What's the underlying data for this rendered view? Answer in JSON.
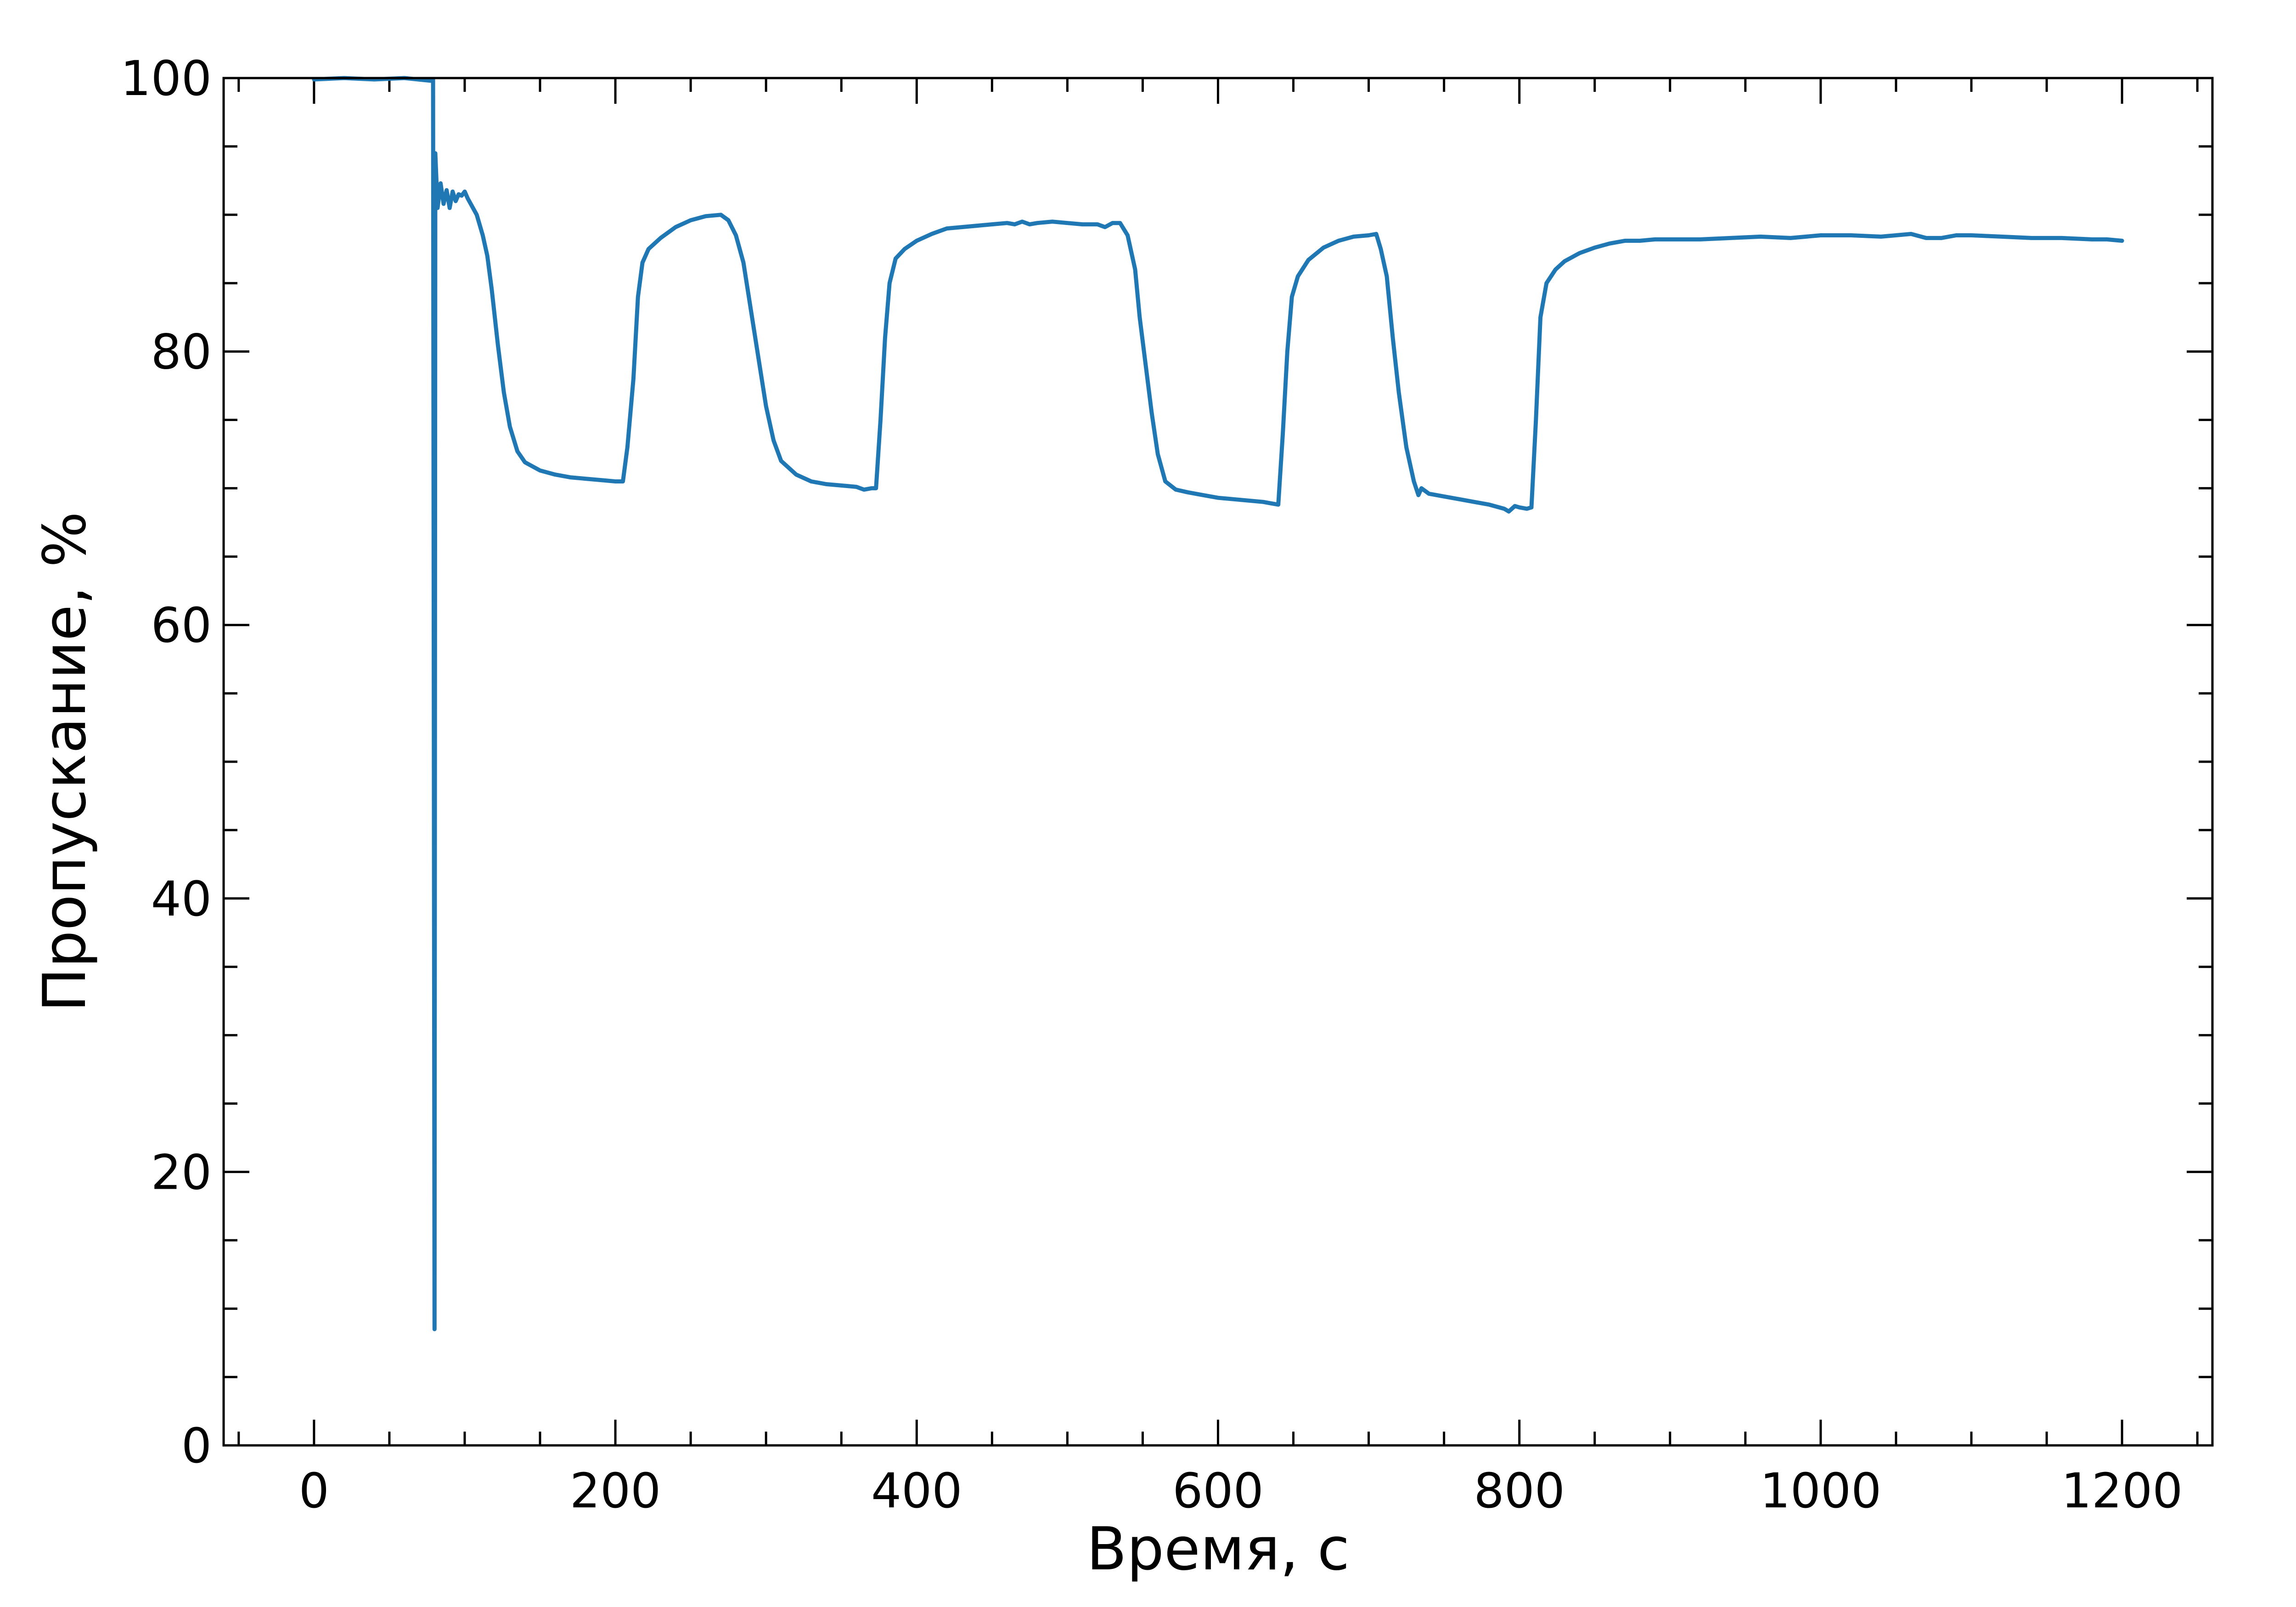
{
  "chart_data": {
    "type": "line",
    "title": "",
    "xlabel": "Время, с",
    "ylabel": "Пропускание, %",
    "xlim": [
      -60,
      1260
    ],
    "ylim": [
      0,
      100
    ],
    "xticks": [
      0,
      200,
      400,
      600,
      800,
      1000,
      1200
    ],
    "yticks": [
      0,
      20,
      40,
      60,
      80,
      100
    ],
    "x_minor_step": 50,
    "y_minor_step": 5,
    "ticks_direction": "in",
    "ticks_on_all_sides": true,
    "grid": false,
    "legend": "none",
    "series": [
      {
        "color": "#1f77b4",
        "points": [
          [
            0,
            99.9
          ],
          [
            20,
            100
          ],
          [
            40,
            99.9
          ],
          [
            60,
            100
          ],
          [
            78,
            99.8
          ],
          [
            79,
            99.9
          ],
          [
            80,
            8.5
          ],
          [
            80.5,
            94.5
          ],
          [
            82,
            90.5
          ],
          [
            84,
            92.3
          ],
          [
            86,
            90.8
          ],
          [
            88,
            91.8
          ],
          [
            90,
            90.5
          ],
          [
            92,
            91.7
          ],
          [
            94,
            91.0
          ],
          [
            96,
            91.5
          ],
          [
            98,
            91.4
          ],
          [
            100,
            91.7
          ],
          [
            102,
            91.2
          ],
          [
            104,
            90.8
          ],
          [
            108,
            90.0
          ],
          [
            112,
            88.5
          ],
          [
            115,
            87.0
          ],
          [
            118,
            84.5
          ],
          [
            122,
            80.5
          ],
          [
            126,
            77.0
          ],
          [
            130,
            74.5
          ],
          [
            135,
            72.7
          ],
          [
            140,
            71.9
          ],
          [
            150,
            71.3
          ],
          [
            160,
            71.0
          ],
          [
            170,
            70.8
          ],
          [
            180,
            70.7
          ],
          [
            190,
            70.6
          ],
          [
            200,
            70.5
          ],
          [
            205,
            70.5
          ],
          [
            208,
            73.0
          ],
          [
            212,
            78.0
          ],
          [
            215,
            84.0
          ],
          [
            218,
            86.5
          ],
          [
            222,
            87.5
          ],
          [
            230,
            88.3
          ],
          [
            240,
            89.1
          ],
          [
            250,
            89.6
          ],
          [
            260,
            89.9
          ],
          [
            270,
            90.0
          ],
          [
            275,
            89.6
          ],
          [
            280,
            88.5
          ],
          [
            285,
            86.5
          ],
          [
            290,
            83.0
          ],
          [
            295,
            79.5
          ],
          [
            300,
            76.0
          ],
          [
            305,
            73.5
          ],
          [
            310,
            72.0
          ],
          [
            320,
            71.0
          ],
          [
            330,
            70.5
          ],
          [
            340,
            70.3
          ],
          [
            350,
            70.2
          ],
          [
            360,
            70.1
          ],
          [
            365,
            69.9
          ],
          [
            370,
            70.0
          ],
          [
            373,
            70.0
          ],
          [
            376,
            75.0
          ],
          [
            379,
            81.0
          ],
          [
            382,
            85.0
          ],
          [
            386,
            86.8
          ],
          [
            392,
            87.5
          ],
          [
            400,
            88.1
          ],
          [
            410,
            88.6
          ],
          [
            420,
            89.0
          ],
          [
            430,
            89.1
          ],
          [
            440,
            89.2
          ],
          [
            450,
            89.3
          ],
          [
            460,
            89.4
          ],
          [
            465,
            89.3
          ],
          [
            470,
            89.5
          ],
          [
            475,
            89.3
          ],
          [
            480,
            89.4
          ],
          [
            490,
            89.5
          ],
          [
            500,
            89.4
          ],
          [
            510,
            89.3
          ],
          [
            520,
            89.3
          ],
          [
            525,
            89.1
          ],
          [
            530,
            89.4
          ],
          [
            535,
            89.4
          ],
          [
            540,
            88.5
          ],
          [
            545,
            86.0
          ],
          [
            548,
            82.5
          ],
          [
            552,
            79.0
          ],
          [
            556,
            75.5
          ],
          [
            560,
            72.5
          ],
          [
            565,
            70.5
          ],
          [
            572,
            69.9
          ],
          [
            580,
            69.7
          ],
          [
            590,
            69.5
          ],
          [
            600,
            69.3
          ],
          [
            610,
            69.2
          ],
          [
            620,
            69.1
          ],
          [
            630,
            69.0
          ],
          [
            635,
            68.9
          ],
          [
            640,
            68.8
          ],
          [
            643,
            74.0
          ],
          [
            646,
            80.0
          ],
          [
            649,
            84.0
          ],
          [
            653,
            85.5
          ],
          [
            660,
            86.7
          ],
          [
            670,
            87.6
          ],
          [
            680,
            88.1
          ],
          [
            690,
            88.4
          ],
          [
            700,
            88.5
          ],
          [
            705,
            88.6
          ],
          [
            708,
            87.5
          ],
          [
            712,
            85.5
          ],
          [
            716,
            81.0
          ],
          [
            720,
            77.0
          ],
          [
            725,
            73.0
          ],
          [
            730,
            70.5
          ],
          [
            733,
            69.5
          ],
          [
            735,
            70.0
          ],
          [
            740,
            69.6
          ],
          [
            750,
            69.4
          ],
          [
            760,
            69.2
          ],
          [
            770,
            69.0
          ],
          [
            780,
            68.8
          ],
          [
            790,
            68.5
          ],
          [
            793,
            68.3
          ],
          [
            797,
            68.7
          ],
          [
            800,
            68.6
          ],
          [
            805,
            68.5
          ],
          [
            808,
            68.6
          ],
          [
            811,
            75.0
          ],
          [
            814,
            82.5
          ],
          [
            818,
            85.0
          ],
          [
            824,
            86.0
          ],
          [
            830,
            86.6
          ],
          [
            840,
            87.2
          ],
          [
            850,
            87.6
          ],
          [
            860,
            87.9
          ],
          [
            870,
            88.1
          ],
          [
            880,
            88.1
          ],
          [
            890,
            88.2
          ],
          [
            900,
            88.2
          ],
          [
            920,
            88.2
          ],
          [
            940,
            88.3
          ],
          [
            960,
            88.4
          ],
          [
            980,
            88.3
          ],
          [
            1000,
            88.5
          ],
          [
            1020,
            88.5
          ],
          [
            1040,
            88.4
          ],
          [
            1060,
            88.6
          ],
          [
            1070,
            88.3
          ],
          [
            1080,
            88.3
          ],
          [
            1090,
            88.5
          ],
          [
            1100,
            88.5
          ],
          [
            1120,
            88.4
          ],
          [
            1140,
            88.3
          ],
          [
            1160,
            88.3
          ],
          [
            1180,
            88.2
          ],
          [
            1190,
            88.2
          ],
          [
            1200,
            88.1
          ]
        ]
      }
    ]
  }
}
